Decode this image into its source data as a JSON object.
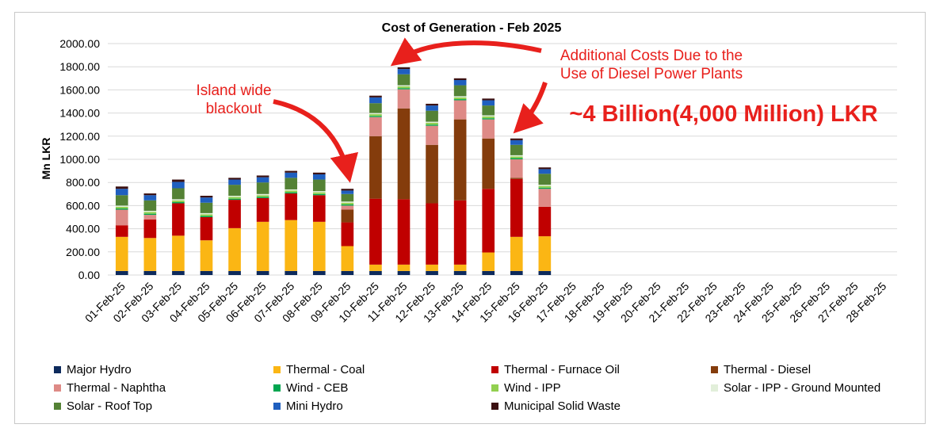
{
  "chart_data": {
    "type": "bar",
    "stacked": true,
    "title": "Cost of Generation - Feb 2025",
    "xlabel": "",
    "ylabel": "Mn LKR",
    "ylim": [
      0,
      2000
    ],
    "yticks": [
      "0.00",
      "200.00",
      "400.00",
      "600.00",
      "800.00",
      "1000.00",
      "1200.00",
      "1400.00",
      "1600.00",
      "1800.00",
      "2000.00"
    ],
    "grid": true,
    "legend_position": "bottom",
    "categories": [
      "01-Feb-25",
      "02-Feb-25",
      "03-Feb-25",
      "04-Feb-25",
      "05-Feb-25",
      "06-Feb-25",
      "07-Feb-25",
      "08-Feb-25",
      "09-Feb-25",
      "10-Feb-25",
      "11-Feb-25",
      "12-Feb-25",
      "13-Feb-25",
      "14-Feb-25",
      "15-Feb-25",
      "16-Feb-25",
      "17-Feb-25",
      "18-Feb-25",
      "19-Feb-25",
      "20-Feb-25",
      "21-Feb-25",
      "22-Feb-25",
      "23-Feb-25",
      "24-Feb-25",
      "25-Feb-25",
      "26-Feb-25",
      "27-Feb-25",
      "28-Feb-25"
    ],
    "series": [
      {
        "name": "Major Hydro",
        "color": "#0d2a5c",
        "values": [
          35,
          35,
          35,
          35,
          35,
          35,
          35,
          35,
          35,
          35,
          35,
          35,
          35,
          35,
          35,
          35,
          null,
          null,
          null,
          null,
          null,
          null,
          null,
          null,
          null,
          null,
          null,
          null
        ]
      },
      {
        "name": "Thermal - Coal",
        "color": "#fbb614",
        "values": [
          295,
          285,
          305,
          265,
          370,
          425,
          440,
          425,
          215,
          55,
          55,
          55,
          55,
          160,
          295,
          300,
          null,
          null,
          null,
          null,
          null,
          null,
          null,
          null,
          null,
          null,
          null,
          null
        ]
      },
      {
        "name": "Thermal - Furnace Oil",
        "color": "#c00000",
        "values": [
          100,
          160,
          280,
          200,
          245,
          205,
          230,
          230,
          205,
          570,
          565,
          530,
          555,
          550,
          500,
          255,
          null,
          null,
          null,
          null,
          null,
          null,
          null,
          null,
          null,
          null,
          null,
          null
        ]
      },
      {
        "name": "Thermal - Diesel",
        "color": "#843c0c",
        "values": [
          0,
          0,
          0,
          0,
          0,
          0,
          0,
          0,
          110,
          540,
          785,
          505,
          700,
          435,
          10,
          0,
          null,
          null,
          null,
          null,
          null,
          null,
          null,
          null,
          null,
          null,
          null,
          null
        ]
      },
      {
        "name": "Thermal - Naphtha",
        "color": "#de8a86",
        "values": [
          135,
          40,
          0,
          0,
          0,
          0,
          0,
          0,
          35,
          165,
          165,
          165,
          165,
          165,
          160,
          155,
          null,
          null,
          null,
          null,
          null,
          null,
          null,
          null,
          null,
          null,
          null,
          null
        ]
      },
      {
        "name": "Wind - CEB",
        "color": "#00a650",
        "values": [
          10,
          10,
          10,
          10,
          10,
          10,
          10,
          10,
          10,
          10,
          10,
          10,
          10,
          10,
          10,
          10,
          null,
          null,
          null,
          null,
          null,
          null,
          null,
          null,
          null,
          null,
          null,
          null
        ]
      },
      {
        "name": "Wind - IPP",
        "color": "#92d050",
        "values": [
          15,
          15,
          15,
          15,
          15,
          15,
          15,
          15,
          15,
          15,
          15,
          15,
          15,
          15,
          15,
          15,
          null,
          null,
          null,
          null,
          null,
          null,
          null,
          null,
          null,
          null,
          null,
          null
        ]
      },
      {
        "name": "Solar - IPP - Ground Mounted",
        "color": "#e2efda",
        "values": [
          10,
          10,
          10,
          10,
          10,
          10,
          10,
          10,
          10,
          10,
          10,
          10,
          10,
          10,
          10,
          10,
          null,
          null,
          null,
          null,
          null,
          null,
          null,
          null,
          null,
          null,
          null,
          null
        ]
      },
      {
        "name": "Solar - Roof Top",
        "color": "#548235",
        "values": [
          90,
          90,
          95,
          90,
          95,
          100,
          100,
          100,
          65,
          85,
          95,
          95,
          95,
          85,
          90,
          95,
          null,
          null,
          null,
          null,
          null,
          null,
          null,
          null,
          null,
          null,
          null,
          null
        ]
      },
      {
        "name": "Mini Hydro",
        "color": "#1f5fbf",
        "values": [
          55,
          45,
          55,
          45,
          45,
          45,
          45,
          45,
          30,
          50,
          45,
          45,
          45,
          45,
          40,
          40,
          null,
          null,
          null,
          null,
          null,
          null,
          null,
          null,
          null,
          null,
          null,
          null
        ]
      },
      {
        "name": "Municipal Solid Waste",
        "color": "#3b1011",
        "values": [
          20,
          15,
          20,
          15,
          15,
          15,
          15,
          15,
          15,
          15,
          15,
          15,
          15,
          15,
          15,
          15,
          null,
          null,
          null,
          null,
          null,
          null,
          null,
          null,
          null,
          null,
          null,
          null
        ]
      }
    ],
    "annotations": [
      {
        "text_lines": [
          "Island wide",
          "blackout"
        ],
        "color": "#e8201c"
      },
      {
        "text_lines": [
          "Additional Costs Due to the",
          "Use of Diesel Power Plants"
        ],
        "color": "#e8201c"
      },
      {
        "text_lines": [
          "~4 Billion(4,000 Million) LKR"
        ],
        "color": "#e8201c"
      }
    ]
  }
}
